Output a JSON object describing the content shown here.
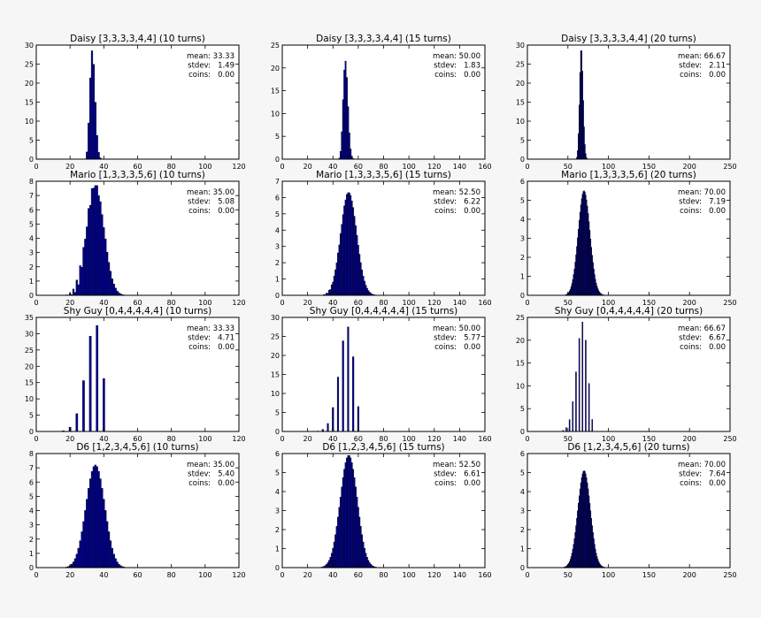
{
  "chart_data": [
    {
      "type": "bar",
      "title": "Daisy [3,3,3,3,4,4] (10 turns)",
      "faces": [
        3,
        3,
        3,
        3,
        4,
        4
      ],
      "turns": 10,
      "xlim": [
        0,
        120
      ],
      "ylim": [
        0,
        30
      ],
      "xticks": [
        0,
        20,
        40,
        60,
        80,
        100,
        120
      ],
      "yticks": [
        0,
        5,
        10,
        15,
        20,
        25,
        30
      ],
      "stats": {
        "mean": "33.33",
        "stdev": "1.49",
        "coins": "0.00"
      },
      "peak": 28.5
    },
    {
      "type": "bar",
      "title": "Daisy [3,3,3,3,4,4] (15 turns)",
      "faces": [
        3,
        3,
        3,
        3,
        4,
        4
      ],
      "turns": 15,
      "xlim": [
        0,
        160
      ],
      "ylim": [
        0,
        25
      ],
      "xticks": [
        0,
        20,
        40,
        60,
        80,
        100,
        120,
        140,
        160
      ],
      "yticks": [
        0,
        5,
        10,
        15,
        20,
        25
      ],
      "stats": {
        "mean": "50.00",
        "stdev": "1.83",
        "coins": "0.00"
      },
      "peak": 21.5
    },
    {
      "type": "bar",
      "title": "Daisy [3,3,3,3,4,4] (20 turns)",
      "faces": [
        3,
        3,
        3,
        3,
        4,
        4
      ],
      "turns": 20,
      "xlim": [
        0,
        250
      ],
      "ylim": [
        0,
        30
      ],
      "xticks": [
        0,
        50,
        100,
        150,
        200,
        250
      ],
      "yticks": [
        0,
        5,
        10,
        15,
        20,
        25,
        30
      ],
      "stats": {
        "mean": "66.67",
        "stdev": "2.11",
        "coins": "0.00"
      },
      "peak": 28.5
    },
    {
      "type": "bar",
      "title": "Mario [1,3,3,3,5,6] (10 turns)",
      "faces": [
        1,
        3,
        3,
        3,
        5,
        6
      ],
      "turns": 10,
      "xlim": [
        0,
        120
      ],
      "ylim": [
        0,
        8
      ],
      "xticks": [
        0,
        20,
        40,
        60,
        80,
        100,
        120
      ],
      "yticks": [
        0,
        1,
        2,
        3,
        4,
        5,
        6,
        7,
        8
      ],
      "stats": {
        "mean": "35.00",
        "stdev": "5.08",
        "coins": "0.00"
      },
      "peak": 7.7
    },
    {
      "type": "bar",
      "title": "Mario [1,3,3,3,5,6] (15 turns)",
      "faces": [
        1,
        3,
        3,
        3,
        5,
        6
      ],
      "turns": 15,
      "xlim": [
        0,
        160
      ],
      "ylim": [
        0,
        7
      ],
      "xticks": [
        0,
        20,
        40,
        60,
        80,
        100,
        120,
        140,
        160
      ],
      "yticks": [
        0,
        1,
        2,
        3,
        4,
        5,
        6,
        7
      ],
      "stats": {
        "mean": "52.50",
        "stdev": "6.22",
        "coins": "0.00"
      },
      "peak": 6.3
    },
    {
      "type": "bar",
      "title": "Mario [1,3,3,3,5,6] (20 turns)",
      "faces": [
        1,
        3,
        3,
        3,
        5,
        6
      ],
      "turns": 20,
      "xlim": [
        0,
        250
      ],
      "ylim": [
        0,
        6
      ],
      "xticks": [
        0,
        50,
        100,
        150,
        200,
        250
      ],
      "yticks": [
        0,
        1,
        2,
        3,
        4,
        5,
        6
      ],
      "stats": {
        "mean": "70.00",
        "stdev": "7.19",
        "coins": "0.00"
      },
      "peak": 5.5
    },
    {
      "type": "bar",
      "title": "Shy Guy [0,4,4,4,4,4] (10 turns)",
      "faces": [
        0,
        4,
        4,
        4,
        4,
        4
      ],
      "turns": 10,
      "xlim": [
        0,
        120
      ],
      "ylim": [
        0,
        35
      ],
      "xticks": [
        0,
        20,
        40,
        60,
        80,
        100,
        120
      ],
      "yticks": [
        0,
        5,
        10,
        15,
        20,
        25,
        30,
        35
      ],
      "stats": {
        "mean": "33.33",
        "stdev": "4.71",
        "coins": "0.00"
      },
      "peak": 32.5
    },
    {
      "type": "bar",
      "title": "Shy Guy [0,4,4,4,4,4] (15 turns)",
      "faces": [
        0,
        4,
        4,
        4,
        4,
        4
      ],
      "turns": 15,
      "xlim": [
        0,
        160
      ],
      "ylim": [
        0,
        30
      ],
      "xticks": [
        0,
        20,
        40,
        60,
        80,
        100,
        120,
        140,
        160
      ],
      "yticks": [
        0,
        5,
        10,
        15,
        20,
        25,
        30
      ],
      "stats": {
        "mean": "50.00",
        "stdev": "5.77",
        "coins": "0.00"
      },
      "peak": 27.5
    },
    {
      "type": "bar",
      "title": "Shy Guy [0,4,4,4,4,4] (20 turns)",
      "faces": [
        0,
        4,
        4,
        4,
        4,
        4
      ],
      "turns": 20,
      "xlim": [
        0,
        250
      ],
      "ylim": [
        0,
        25
      ],
      "xticks": [
        0,
        50,
        100,
        150,
        200,
        250
      ],
      "yticks": [
        0,
        5,
        10,
        15,
        20,
        25
      ],
      "stats": {
        "mean": "66.67",
        "stdev": "6.67",
        "coins": "0.00"
      },
      "peak": 24
    },
    {
      "type": "bar",
      "title": "D6 [1,2,3,4,5,6] (10 turns)",
      "faces": [
        1,
        2,
        3,
        4,
        5,
        6
      ],
      "turns": 10,
      "xlim": [
        0,
        120
      ],
      "ylim": [
        0,
        8
      ],
      "xticks": [
        0,
        20,
        40,
        60,
        80,
        100,
        120
      ],
      "yticks": [
        0,
        1,
        2,
        3,
        4,
        5,
        6,
        7,
        8
      ],
      "stats": {
        "mean": "35.00",
        "stdev": "5.40",
        "coins": "0.00"
      },
      "peak": 7.2
    },
    {
      "type": "bar",
      "title": "D6 [1,2,3,4,5,6] (15 turns)",
      "faces": [
        1,
        2,
        3,
        4,
        5,
        6
      ],
      "turns": 15,
      "xlim": [
        0,
        160
      ],
      "ylim": [
        0,
        6
      ],
      "xticks": [
        0,
        20,
        40,
        60,
        80,
        100,
        120,
        140,
        160
      ],
      "yticks": [
        0,
        1,
        2,
        3,
        4,
        5,
        6
      ],
      "stats": {
        "mean": "52.50",
        "stdev": "6.61",
        "coins": "0.00"
      },
      "peak": 5.9
    },
    {
      "type": "bar",
      "title": "D6 [1,2,3,4,5,6] (20 turns)",
      "faces": [
        1,
        2,
        3,
        4,
        5,
        6
      ],
      "turns": 20,
      "xlim": [
        0,
        250
      ],
      "ylim": [
        0,
        6
      ],
      "xticks": [
        0,
        50,
        100,
        150,
        200,
        250
      ],
      "yticks": [
        0,
        1,
        2,
        3,
        4,
        5,
        6
      ],
      "stats": {
        "mean": "70.00",
        "stdev": "7.64",
        "coins": "0.00"
      },
      "peak": 5.1
    }
  ],
  "stat_labels": {
    "mean": "mean:",
    "stdev": "stdev:",
    "coins": "coins:"
  },
  "colors": {
    "bar_fill": "#0000a0",
    "bar_edge": "#000000",
    "axes_bg": "#ffffff",
    "figure_bg": "#f6f6f6"
  }
}
